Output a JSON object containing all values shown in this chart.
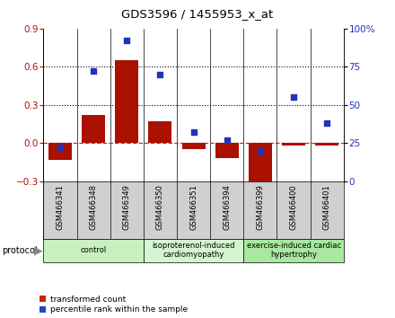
{
  "title": "GDS3596 / 1455953_x_at",
  "samples": [
    "GSM466341",
    "GSM466348",
    "GSM466349",
    "GSM466350",
    "GSM466351",
    "GSM466394",
    "GSM466399",
    "GSM466400",
    "GSM466401"
  ],
  "transformed_count": [
    -0.13,
    0.22,
    0.65,
    0.17,
    -0.05,
    -0.12,
    -0.36,
    -0.02,
    -0.02
  ],
  "percentile_rank": [
    22,
    72,
    92,
    70,
    32,
    27,
    20,
    55,
    38
  ],
  "groups": [
    {
      "label": "control",
      "start": 0,
      "end": 3,
      "color": "#c8f0c0"
    },
    {
      "label": "isoproterenol-induced\ncardiomyopathy",
      "start": 3,
      "end": 6,
      "color": "#d4f5d0"
    },
    {
      "label": "exercise-induced cardiac\nhypertrophy",
      "start": 6,
      "end": 9,
      "color": "#a8e8a0"
    }
  ],
  "ylim_left": [
    -0.3,
    0.9
  ],
  "ylim_right": [
    0,
    100
  ],
  "yticks_left": [
    -0.3,
    0.0,
    0.3,
    0.6,
    0.9
  ],
  "yticks_right": [
    0,
    25,
    50,
    75,
    100
  ],
  "bar_color": "#aa1100",
  "dot_color": "#2233bb",
  "dashed_color": "#cc3300",
  "bg_color": "#ffffff",
  "sample_box_color": "#d0d0d0",
  "legend_bar_color": "#cc2200",
  "legend_dot_color": "#2244cc"
}
